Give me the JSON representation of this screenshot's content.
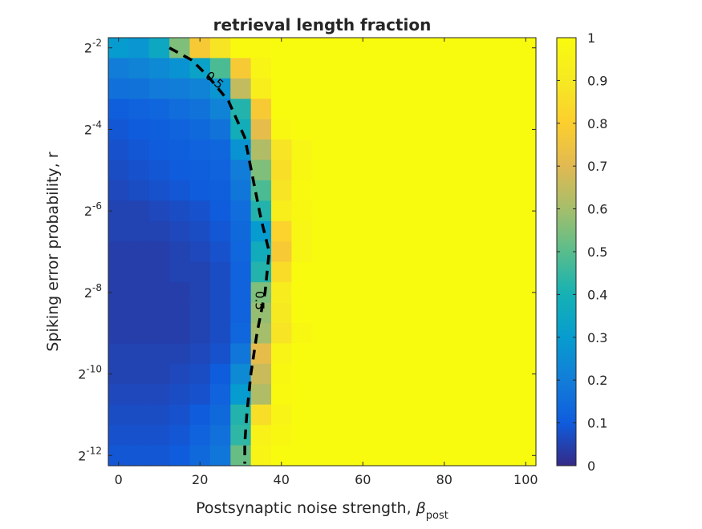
{
  "chart_data": {
    "type": "heatmap",
    "title": "retrieval length fraction",
    "xlabel": {
      "prefix": "Postsynaptic noise strength, ",
      "symbol": "β",
      "subscript": "post"
    },
    "ylabel": "Spiking error probability, r",
    "xlim": [
      -2.5,
      102.5
    ],
    "ylim_log2": [
      -12.25,
      -1.75
    ],
    "x_ticks": [
      0,
      20,
      40,
      60,
      80,
      100
    ],
    "y_ticks": [
      {
        "base": "2",
        "exp": "-2",
        "log2": -2
      },
      {
        "base": "2",
        "exp": "-4",
        "log2": -4
      },
      {
        "base": "2",
        "exp": "-6",
        "log2": -6
      },
      {
        "base": "2",
        "exp": "-8",
        "log2": -8
      },
      {
        "base": "2",
        "exp": "-10",
        "log2": -10
      },
      {
        "base": "2",
        "exp": "-12",
        "log2": -12
      }
    ],
    "x_centers": [
      0,
      5,
      10,
      15,
      20,
      25,
      30,
      35,
      40,
      45,
      50,
      55,
      60,
      65,
      70,
      75,
      80,
      85,
      90,
      95,
      100
    ],
    "y_log2_centers": [
      -2,
      -2.5,
      -3,
      -3.5,
      -4,
      -4.5,
      -5,
      -5.5,
      -6,
      -6.5,
      -7,
      -7.5,
      -8,
      -8.5,
      -9,
      -9.5,
      -10,
      -10.5,
      -11,
      -11.5,
      -12
    ],
    "z_note": "rows top (r=2^-2) to bottom (r=2^-12); columns beta_post 0..100 step 5",
    "z": [
      [
        0.3,
        0.28,
        0.35,
        0.55,
        0.78,
        0.88,
        0.99,
        0.99,
        1,
        1,
        1,
        1,
        1,
        1,
        1,
        1,
        1,
        1,
        1,
        1,
        1
      ],
      [
        0.2,
        0.22,
        0.24,
        0.27,
        0.33,
        0.48,
        0.78,
        0.96,
        1,
        1,
        1,
        1,
        1,
        1,
        1,
        1,
        1,
        1,
        1,
        1,
        1
      ],
      [
        0.16,
        0.17,
        0.19,
        0.2,
        0.22,
        0.28,
        0.65,
        0.93,
        1,
        1,
        1,
        1,
        1,
        1,
        1,
        1,
        1,
        1,
        1,
        1,
        1
      ],
      [
        0.11,
        0.12,
        0.13,
        0.15,
        0.17,
        0.22,
        0.42,
        0.78,
        1,
        1,
        1,
        1,
        1,
        1,
        1,
        1,
        1,
        1,
        1,
        1,
        1
      ],
      [
        0.09,
        0.1,
        0.11,
        0.12,
        0.14,
        0.17,
        0.38,
        0.72,
        0.98,
        1,
        1,
        1,
        1,
        1,
        1,
        1,
        1,
        1,
        1,
        1,
        1
      ],
      [
        0.08,
        0.09,
        0.1,
        0.11,
        0.12,
        0.13,
        0.27,
        0.62,
        0.88,
        0.97,
        1,
        1,
        1,
        1,
        1,
        1,
        1,
        1,
        1,
        1,
        1
      ],
      [
        0.07,
        0.08,
        0.09,
        0.1,
        0.11,
        0.12,
        0.2,
        0.55,
        0.86,
        0.98,
        1,
        1,
        1,
        1,
        1,
        1,
        1,
        1,
        1,
        1,
        1
      ],
      [
        0.06,
        0.07,
        0.08,
        0.09,
        0.1,
        0.11,
        0.18,
        0.48,
        0.88,
        0.99,
        1,
        1,
        1,
        1,
        1,
        1,
        1,
        1,
        1,
        1,
        1
      ],
      [
        0.05,
        0.05,
        0.06,
        0.07,
        0.08,
        0.1,
        0.15,
        0.42,
        0.93,
        0.98,
        1,
        1,
        1,
        1,
        1,
        1,
        1,
        1,
        1,
        1,
        1
      ],
      [
        0.05,
        0.05,
        0.05,
        0.06,
        0.07,
        0.09,
        0.14,
        0.3,
        0.82,
        0.97,
        1,
        1,
        1,
        1,
        1,
        1,
        1,
        1,
        1,
        1,
        1
      ],
      [
        0.04,
        0.04,
        0.04,
        0.05,
        0.06,
        0.08,
        0.13,
        0.37,
        0.78,
        0.97,
        1,
        1,
        1,
        1,
        1,
        1,
        1,
        1,
        1,
        1,
        1
      ],
      [
        0.04,
        0.04,
        0.04,
        0.05,
        0.05,
        0.07,
        0.12,
        0.42,
        0.85,
        1,
        1,
        1,
        1,
        1,
        1,
        1,
        1,
        1,
        1,
        1,
        1
      ],
      [
        0.04,
        0.04,
        0.04,
        0.04,
        0.05,
        0.07,
        0.12,
        0.55,
        0.92,
        1,
        1,
        1,
        1,
        1,
        1,
        1,
        1,
        1,
        1,
        1,
        1
      ],
      [
        0.04,
        0.04,
        0.04,
        0.04,
        0.05,
        0.07,
        0.12,
        0.58,
        0.9,
        1,
        1,
        1,
        1,
        1,
        1,
        1,
        1,
        1,
        1,
        1,
        1
      ],
      [
        0.04,
        0.04,
        0.04,
        0.04,
        0.05,
        0.07,
        0.13,
        0.6,
        0.88,
        0.98,
        1,
        1,
        1,
        1,
        1,
        1,
        1,
        1,
        1,
        1,
        1
      ],
      [
        0.05,
        0.05,
        0.05,
        0.05,
        0.06,
        0.08,
        0.18,
        0.72,
        0.96,
        1,
        1,
        1,
        1,
        1,
        1,
        1,
        1,
        1,
        1,
        1,
        1
      ],
      [
        0.05,
        0.05,
        0.05,
        0.06,
        0.07,
        0.1,
        0.24,
        0.66,
        0.98,
        1,
        1,
        1,
        1,
        1,
        1,
        1,
        1,
        1,
        1,
        1,
        1
      ],
      [
        0.06,
        0.06,
        0.06,
        0.07,
        0.08,
        0.12,
        0.3,
        0.62,
        0.99,
        1,
        1,
        1,
        1,
        1,
        1,
        1,
        1,
        1,
        1,
        1,
        1
      ],
      [
        0.07,
        0.07,
        0.07,
        0.08,
        0.1,
        0.14,
        0.42,
        0.86,
        0.96,
        1,
        1,
        1,
        1,
        1,
        1,
        1,
        1,
        1,
        1,
        1,
        1
      ],
      [
        0.08,
        0.08,
        0.08,
        0.09,
        0.12,
        0.16,
        0.44,
        0.95,
        0.98,
        1,
        1,
        1,
        1,
        1,
        1,
        1,
        1,
        1,
        1,
        1,
        1
      ],
      [
        0.09,
        0.09,
        0.09,
        0.1,
        0.14,
        0.18,
        0.52,
        0.96,
        1,
        1,
        1,
        1,
        1,
        1,
        1,
        1,
        1,
        1,
        1,
        1,
        1
      ]
    ],
    "contour": {
      "level": "0.5",
      "style": "dashed",
      "color": "#000000",
      "points": [
        [
          12.5,
          -2
        ],
        [
          18,
          -2.3
        ],
        [
          22,
          -2.7
        ],
        [
          27,
          -3.3
        ],
        [
          31,
          -4.2
        ],
        [
          33,
          -5.2
        ],
        [
          35,
          -6.2
        ],
        [
          37,
          -7.0
        ],
        [
          36,
          -8.0
        ],
        [
          34,
          -9.0
        ],
        [
          32.5,
          -10.0
        ],
        [
          31.5,
          -11.0
        ],
        [
          31,
          -11.7
        ],
        [
          31,
          -12.2
        ]
      ],
      "labels": [
        {
          "text": "0.5",
          "x": 23.5,
          "y_log2": -2.8
        },
        {
          "text": "0.5",
          "x": 34.5,
          "y_log2": -8.2
        }
      ]
    },
    "colorbar": {
      "ticks": [
        {
          "value": 0,
          "label": "0"
        },
        {
          "value": 0.1,
          "label": "0.1"
        },
        {
          "value": 0.2,
          "label": "0.2"
        },
        {
          "value": 0.3,
          "label": "0.3"
        },
        {
          "value": 0.4,
          "label": "0.4"
        },
        {
          "value": 0.5,
          "label": "0.5"
        },
        {
          "value": 0.6,
          "label": "0.6"
        },
        {
          "value": 0.7,
          "label": "0.7"
        },
        {
          "value": 0.8,
          "label": "0.8"
        },
        {
          "value": 0.9,
          "label": "0.9"
        },
        {
          "value": 1,
          "label": "1"
        }
      ],
      "range": [
        0,
        1
      ],
      "colormap": "parula"
    }
  }
}
